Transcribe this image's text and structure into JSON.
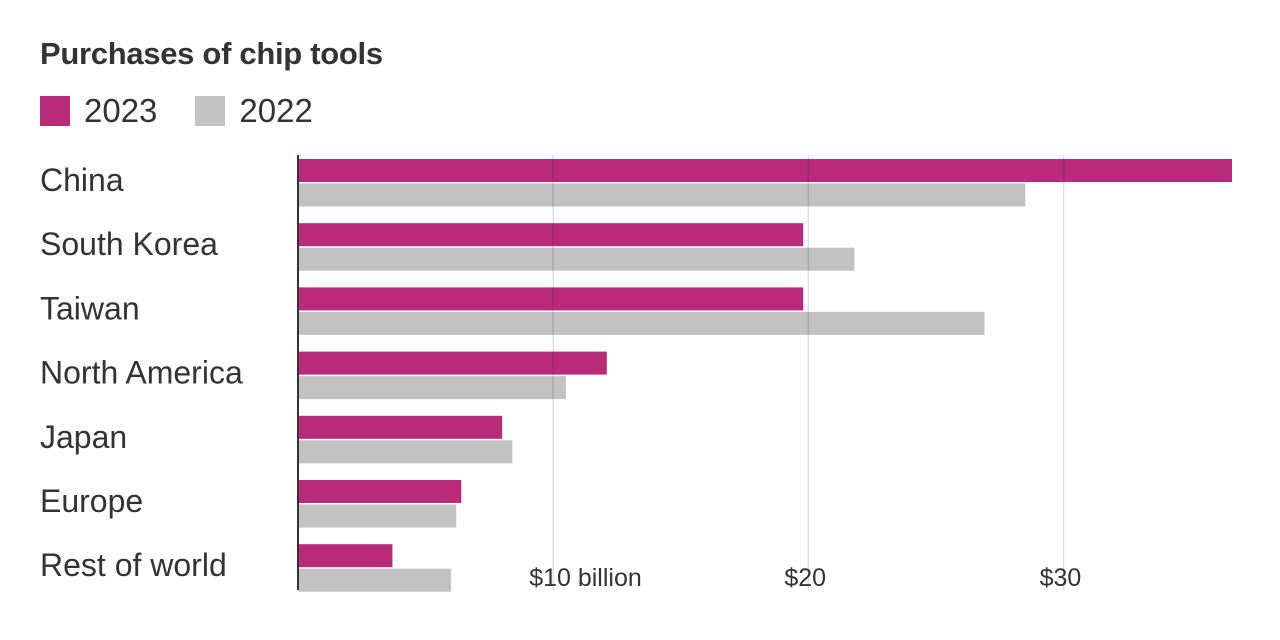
{
  "title": "Purchases of chip tools",
  "legend": [
    {
      "label": "2023",
      "color": "#b92b78"
    },
    {
      "label": "2022",
      "color": "#c2c2c2"
    }
  ],
  "chart_data": {
    "type": "bar",
    "orientation": "horizontal",
    "title": "Purchases of chip tools",
    "categories": [
      "China",
      "South Korea",
      "Taiwan",
      "North America",
      "Japan",
      "Europe",
      "Rest of world"
    ],
    "series": [
      {
        "name": "2023",
        "color": "#b92b78",
        "values": [
          36.6,
          19.8,
          19.8,
          12.1,
          8.0,
          6.4,
          3.7
        ]
      },
      {
        "name": "2022",
        "color": "#c2c2c2",
        "values": [
          28.5,
          21.8,
          26.9,
          10.5,
          8.4,
          6.2,
          6.0
        ]
      }
    ],
    "xlim": [
      0,
      36.6
    ],
    "xticks": [
      {
        "value": 10,
        "label": "$10 billion"
      },
      {
        "value": 20,
        "label": "$20"
      },
      {
        "value": 30,
        "label": "$30"
      }
    ],
    "grid": true,
    "legend_position": "top-left"
  }
}
